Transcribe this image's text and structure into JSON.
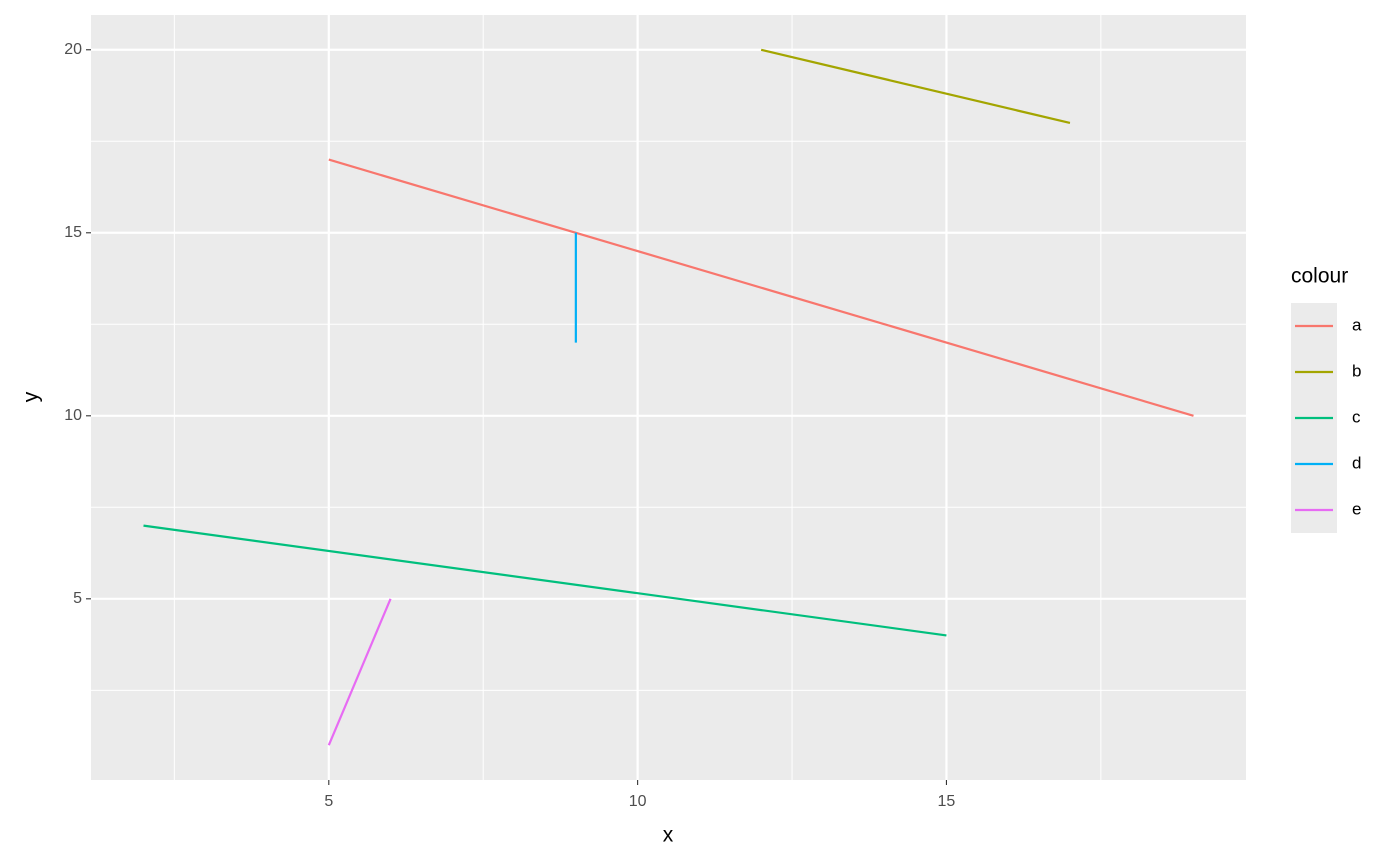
{
  "chart_data": {
    "type": "segment",
    "x_label": "x",
    "y_label": "y",
    "legend_title": "colour",
    "xlim": [
      1.15,
      19.85
    ],
    "ylim": [
      0.05,
      20.95
    ],
    "xticks": [
      5,
      10,
      15
    ],
    "yticks": [
      5,
      10,
      15,
      20
    ],
    "x_minor_ticks": [
      2.5,
      7.5,
      12.5,
      17.5
    ],
    "y_minor_ticks": [
      2.5,
      7.5,
      12.5,
      17.5
    ],
    "grid": true,
    "legend_position": "right",
    "series": [
      {
        "name": "a",
        "color": "#f8766d",
        "x": [
          5,
          19
        ],
        "values": [
          17,
          10
        ]
      },
      {
        "name": "b",
        "color": "#a3a500",
        "x": [
          12,
          17
        ],
        "values": [
          20,
          18
        ]
      },
      {
        "name": "c",
        "color": "#00bf7d",
        "x": [
          2,
          15
        ],
        "values": [
          7,
          4
        ]
      },
      {
        "name": "d",
        "color": "#00b0f6",
        "x": [
          9,
          9
        ],
        "values": [
          15,
          12
        ]
      },
      {
        "name": "e",
        "color": "#e76bf3",
        "x": [
          5,
          6
        ],
        "values": [
          1,
          5
        ]
      }
    ]
  }
}
